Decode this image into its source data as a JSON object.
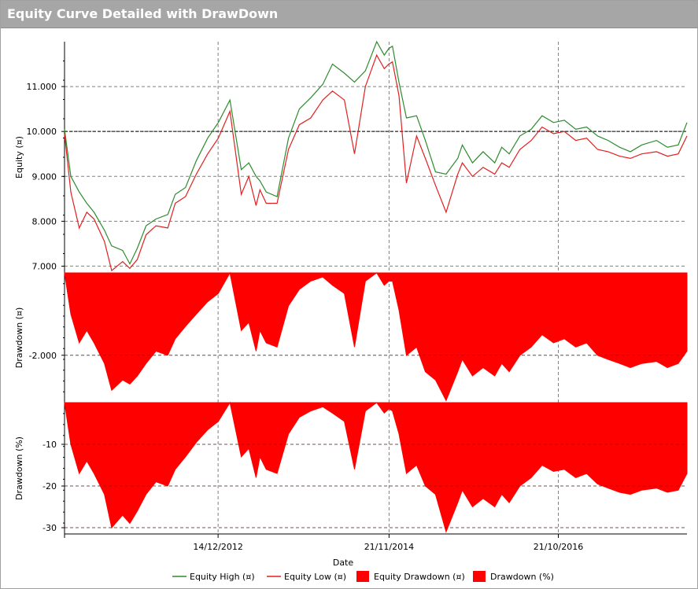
{
  "window": {
    "title": "Equity Curve Detailed with DrawDown"
  },
  "colors": {
    "equity_high": "#2e8b2e",
    "equity_low": "#e02020",
    "drawdown_fill": "#ff0000",
    "grid": "#808080",
    "titlebar": "#a6a6a6"
  },
  "chart_data": [
    {
      "type": "line",
      "panel": "equity",
      "ylabel": "Equity (¤)",
      "ylim": [
        6850,
        12000
      ],
      "yticks": [
        7000,
        8000,
        9000,
        10000,
        11000
      ],
      "ytick_labels": [
        "7.000",
        "8.000",
        "9.000",
        "10.000",
        "11.000"
      ],
      "reference_line": 10000,
      "series": [
        {
          "name": "Equity High (¤)",
          "x": [
            "2011-03-20",
            "2011-04-15",
            "2011-05-20",
            "2011-06-20",
            "2011-07-20",
            "2011-09-01",
            "2011-10-01",
            "2011-11-15",
            "2011-12-15",
            "2012-01-15",
            "2012-02-20",
            "2012-04-01",
            "2012-05-20",
            "2012-06-20",
            "2012-08-01",
            "2012-09-15",
            "2012-11-01",
            "2012-12-15",
            "2013-02-01",
            "2013-03-20",
            "2013-04-20",
            "2013-05-20",
            "2013-06-05",
            "2013-07-01",
            "2013-08-15",
            "2013-10-01",
            "2013-11-15",
            "2014-01-01",
            "2014-02-20",
            "2014-04-01",
            "2014-05-20",
            "2014-07-01",
            "2014-08-15",
            "2014-10-01",
            "2014-11-01",
            "2014-11-20",
            "2014-12-05",
            "2015-01-01",
            "2015-02-01",
            "2015-03-15",
            "2015-04-20",
            "2015-06-01",
            "2015-07-15",
            "2015-09-01",
            "2015-09-20",
            "2015-11-01",
            "2015-12-15",
            "2016-02-01",
            "2016-03-01",
            "2016-04-01",
            "2016-05-15",
            "2016-07-01",
            "2016-08-15",
            "2016-10-01",
            "2016-11-15",
            "2017-01-01",
            "2017-02-15",
            "2017-04-01",
            "2017-05-15",
            "2017-07-01",
            "2017-08-15",
            "2017-10-01",
            "2017-12-01",
            "2018-01-15",
            "2018-03-01",
            "2018-04-06"
          ],
          "values": [
            10050,
            9000,
            8650,
            8400,
            8200,
            7800,
            7450,
            7350,
            7050,
            7400,
            7900,
            8050,
            8150,
            8600,
            8750,
            9350,
            9850,
            10200,
            10700,
            9150,
            9300,
            9000,
            8900,
            8650,
            8550,
            9850,
            10500,
            10750,
            11050,
            11500,
            11300,
            11100,
            11350,
            12000,
            11700,
            11850,
            11900,
            11100,
            10300,
            10350,
            9800,
            9100,
            9050,
            9400,
            9700,
            9300,
            9550,
            9300,
            9650,
            9500,
            9900,
            10050,
            10350,
            10200,
            10250,
            10050,
            10100,
            9900,
            9800,
            9650,
            9550,
            9700,
            9800,
            9650,
            9700,
            10200
          ]
        },
        {
          "name": "Equity Low (¤)",
          "x": [
            "2011-03-20",
            "2011-04-15",
            "2011-05-20",
            "2011-06-20",
            "2011-07-20",
            "2011-09-01",
            "2011-10-01",
            "2011-11-15",
            "2011-12-15",
            "2012-01-15",
            "2012-02-20",
            "2012-04-01",
            "2012-05-20",
            "2012-06-20",
            "2012-08-01",
            "2012-09-15",
            "2012-11-01",
            "2012-12-15",
            "2013-02-01",
            "2013-03-20",
            "2013-04-20",
            "2013-05-20",
            "2013-06-05",
            "2013-07-01",
            "2013-08-15",
            "2013-10-01",
            "2013-11-15",
            "2014-01-01",
            "2014-02-20",
            "2014-04-01",
            "2014-05-20",
            "2014-07-01",
            "2014-08-15",
            "2014-10-01",
            "2014-11-01",
            "2014-11-20",
            "2014-12-05",
            "2015-01-01",
            "2015-02-01",
            "2015-03-15",
            "2015-04-20",
            "2015-06-01",
            "2015-07-15",
            "2015-09-01",
            "2015-09-20",
            "2015-11-01",
            "2015-12-15",
            "2016-02-01",
            "2016-03-01",
            "2016-04-01",
            "2016-05-15",
            "2016-07-01",
            "2016-08-15",
            "2016-10-01",
            "2016-11-15",
            "2017-01-01",
            "2017-02-15",
            "2017-04-01",
            "2017-05-15",
            "2017-07-01",
            "2017-08-15",
            "2017-10-01",
            "2017-12-01",
            "2018-01-15",
            "2018-03-01",
            "2018-04-06"
          ],
          "values": [
            9950,
            8650,
            7850,
            8200,
            8050,
            7550,
            6900,
            7100,
            6950,
            7150,
            7700,
            7900,
            7850,
            8400,
            8550,
            9050,
            9500,
            9850,
            10450,
            8600,
            9000,
            8350,
            8700,
            8400,
            8400,
            9600,
            10150,
            10300,
            10700,
            10900,
            10700,
            9500,
            11000,
            11700,
            11400,
            11500,
            11550,
            10800,
            8850,
            9900,
            9400,
            8800,
            8200,
            9050,
            9300,
            9000,
            9200,
            9050,
            9300,
            9200,
            9600,
            9800,
            10100,
            9950,
            10000,
            9800,
            9850,
            9600,
            9550,
            9450,
            9400,
            9500,
            9550,
            9450,
            9500,
            9900
          ]
        }
      ]
    },
    {
      "type": "area",
      "panel": "drawdown-amount",
      "ylabel": "Drawdown (¤)",
      "ylim": [
        -3150,
        0
      ],
      "yticks": [
        -2000
      ],
      "ytick_labels": [
        "-2.000"
      ],
      "series": [
        {
          "name": "Equity Drawdown (¤)",
          "x": [
            "2011-03-20",
            "2011-04-15",
            "2011-05-20",
            "2011-06-20",
            "2011-07-20",
            "2011-09-01",
            "2011-10-01",
            "2011-11-15",
            "2011-12-15",
            "2012-01-15",
            "2012-02-20",
            "2012-04-01",
            "2012-05-20",
            "2012-06-20",
            "2012-08-01",
            "2012-09-15",
            "2012-11-01",
            "2012-12-15",
            "2013-02-01",
            "2013-03-20",
            "2013-04-20",
            "2013-05-20",
            "2013-06-05",
            "2013-07-01",
            "2013-08-15",
            "2013-10-01",
            "2013-11-15",
            "2014-01-01",
            "2014-02-20",
            "2014-04-01",
            "2014-05-20",
            "2014-07-01",
            "2014-08-15",
            "2014-10-01",
            "2014-11-01",
            "2014-11-20",
            "2014-12-05",
            "2015-01-01",
            "2015-02-01",
            "2015-03-15",
            "2015-04-20",
            "2015-06-01",
            "2015-07-15",
            "2015-09-01",
            "2015-09-20",
            "2015-11-01",
            "2015-12-15",
            "2016-02-01",
            "2016-03-01",
            "2016-04-01",
            "2016-05-15",
            "2016-07-01",
            "2016-08-15",
            "2016-10-01",
            "2016-11-15",
            "2017-01-01",
            "2017-02-15",
            "2017-04-01",
            "2017-05-15",
            "2017-07-01",
            "2017-08-15",
            "2017-10-01",
            "2017-12-01",
            "2018-01-15",
            "2018-03-01",
            "2018-04-06"
          ],
          "values": [
            0,
            -1000,
            -1700,
            -1400,
            -1700,
            -2200,
            -2850,
            -2600,
            -2700,
            -2500,
            -2200,
            -1900,
            -2000,
            -1600,
            -1300,
            -1000,
            -700,
            -500,
            0,
            -1400,
            -1200,
            -1900,
            -1400,
            -1700,
            -1800,
            -800,
            -400,
            -200,
            -100,
            -300,
            -500,
            -1800,
            -200,
            0,
            -300,
            -200,
            -200,
            -900,
            -2000,
            -1800,
            -2400,
            -2600,
            -3100,
            -2400,
            -2100,
            -2500,
            -2300,
            -2500,
            -2200,
            -2400,
            -2000,
            -1800,
            -1500,
            -1700,
            -1600,
            -1800,
            -1700,
            -2000,
            -2100,
            -2200,
            -2300,
            -2200,
            -2150,
            -2300,
            -2200,
            -1900
          ]
        }
      ]
    },
    {
      "type": "area",
      "panel": "drawdown-percent",
      "xlabel": "Date",
      "ylabel": "Drawdown (%)",
      "ylim": [
        -31.5,
        0
      ],
      "yticks": [
        -10,
        -20,
        -30
      ],
      "ytick_labels": [
        "-10",
        "-20",
        "-30"
      ],
      "xticks": [
        "2012-12-14",
        "2014-11-21",
        "2016-10-21"
      ],
      "xtick_labels": [
        "14/12/2012",
        "21/11/2014",
        "21/10/2016"
      ],
      "xlim": [
        "2011-03-20",
        "2018-04-06"
      ],
      "series": [
        {
          "name": "Drawdown (%)",
          "x": [
            "2011-03-20",
            "2011-04-15",
            "2011-05-20",
            "2011-06-20",
            "2011-07-20",
            "2011-09-01",
            "2011-10-01",
            "2011-11-15",
            "2011-12-15",
            "2012-01-15",
            "2012-02-20",
            "2012-04-01",
            "2012-05-20",
            "2012-06-20",
            "2012-08-01",
            "2012-09-15",
            "2012-11-01",
            "2012-12-15",
            "2013-02-01",
            "2013-03-20",
            "2013-04-20",
            "2013-05-20",
            "2013-06-05",
            "2013-07-01",
            "2013-08-15",
            "2013-10-01",
            "2013-11-15",
            "2014-01-01",
            "2014-02-20",
            "2014-04-01",
            "2014-05-20",
            "2014-07-01",
            "2014-08-15",
            "2014-10-01",
            "2014-11-01",
            "2014-11-20",
            "2014-12-05",
            "2015-01-01",
            "2015-02-01",
            "2015-03-15",
            "2015-04-20",
            "2015-06-01",
            "2015-07-15",
            "2015-09-01",
            "2015-09-20",
            "2015-11-01",
            "2015-12-15",
            "2016-02-01",
            "2016-03-01",
            "2016-04-01",
            "2016-05-15",
            "2016-07-01",
            "2016-08-15",
            "2016-10-01",
            "2016-11-15",
            "2017-01-01",
            "2017-02-15",
            "2017-04-01",
            "2017-05-15",
            "2017-07-01",
            "2017-08-15",
            "2017-10-01",
            "2017-12-01",
            "2018-01-15",
            "2018-03-01",
            "2018-04-06"
          ],
          "values": [
            0,
            -10,
            -17,
            -14,
            -17,
            -22,
            -30,
            -27,
            -29,
            -26,
            -22,
            -19,
            -20,
            -16,
            -13,
            -9.5,
            -6.5,
            -4.5,
            0,
            -13,
            -11,
            -18,
            -13,
            -16,
            -17,
            -7.5,
            -3.5,
            -2,
            -1,
            -2.5,
            -4.5,
            -16,
            -2,
            0,
            -2.5,
            -1.5,
            -2,
            -7.5,
            -17,
            -15,
            -20,
            -22,
            -31,
            -24,
            -21,
            -25,
            -23,
            -25,
            -22,
            -24,
            -20,
            -18,
            -15,
            -16.5,
            -16,
            -18,
            -17,
            -19.5,
            -20.5,
            -21.5,
            -22,
            -21,
            -20.5,
            -21.5,
            -21,
            -17
          ]
        }
      ]
    }
  ],
  "legend": {
    "items": [
      {
        "label": "Equity High (¤)",
        "kind": "line",
        "color": "#2e8b2e"
      },
      {
        "label": "Equity Low (¤)",
        "kind": "line",
        "color": "#e02020"
      },
      {
        "label": "Equity Drawdown (¤)",
        "kind": "box",
        "color": "#ff0000"
      },
      {
        "label": "Drawdown (%)",
        "kind": "box",
        "color": "#ff0000"
      }
    ]
  }
}
